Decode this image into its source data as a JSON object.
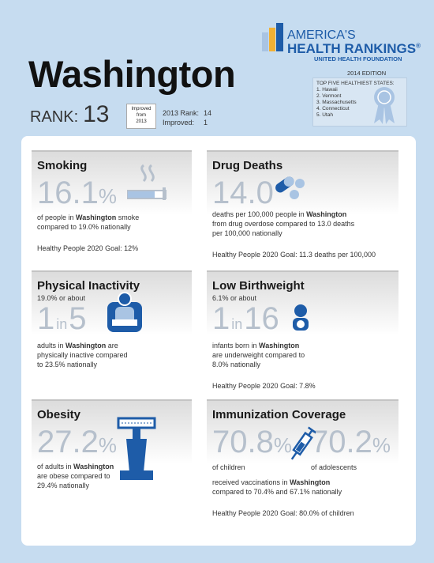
{
  "header": {
    "logo": {
      "line1": "AMERICA'S",
      "line2": "HEALTH RANKINGS",
      "registered": "®",
      "org": "UNITED HEALTH FOUNDATION"
    },
    "edition": "2014 EDITION",
    "state": "Washington",
    "rank_label": "RANK:",
    "rank": "13",
    "badge": [
      "Improved",
      "from",
      "2013"
    ],
    "prev_rank_label": "2013 Rank:",
    "prev_rank": "14",
    "improved_label": "Improved:",
    "improved": "1",
    "top_five": {
      "title": "TOP FIVE HEALTHIEST STATES:",
      "items": [
        "1. Hawaii",
        "2. Vermont",
        "3. Massachusetts",
        "4. Connecticut",
        "5. Utah"
      ]
    }
  },
  "sections": [
    {
      "title": "Smoking",
      "figures": [
        {
          "value": "16.1",
          "unit": "%"
        }
      ],
      "lines": [
        [
          "of people in ",
          {
            "text": "Washington",
            "bold": true
          },
          " smoke"
        ],
        [
          "compared to 19.0% nationally"
        ]
      ],
      "goal": "Healthy People 2020 Goal: 12%"
    },
    {
      "title": "Drug Deaths",
      "figures": [
        {
          "value": "14.0"
        }
      ],
      "lines": [
        [
          "deaths per 100,000 people in ",
          {
            "text": "Washington",
            "bold": true
          }
        ],
        [
          "from drug overdose compared to 13.0 deaths"
        ],
        [
          "per 100,000 nationally"
        ]
      ],
      "goal": "Healthy People 2020 Goal: 11.3 deaths per 100,000"
    },
    {
      "title": "Physical Inactivity",
      "pre": "19.0% or about",
      "ratio": {
        "a": "1",
        "in": "in",
        "b": "5"
      },
      "lines": [
        [
          "adults in ",
          {
            "text": "Washington",
            "bold": true
          },
          " are"
        ],
        [
          "physically inactive compared"
        ],
        [
          "to 23.5% nationally"
        ]
      ]
    },
    {
      "title": "Low Birthweight",
      "pre": "6.1% or about",
      "ratio": {
        "a": "1",
        "in": "in",
        "b": "16"
      },
      "lines": [
        [
          "infants born in ",
          {
            "text": "Washington",
            "bold": true
          }
        ],
        [
          "are underweight compared to"
        ],
        [
          "8.0% nationally"
        ]
      ],
      "goal": "Healthy People 2020 Goal: 7.8%"
    },
    {
      "title": "Obesity",
      "figures": [
        {
          "value": "27.2",
          "unit": "%"
        }
      ],
      "lines": [
        [
          "of adults in ",
          {
            "text": "Washington",
            "bold": true
          }
        ],
        [
          "are obese compared to"
        ],
        [
          "29.4% nationally"
        ]
      ]
    },
    {
      "title": "Immunization Coverage",
      "figures": [
        {
          "value": "70.8",
          "unit": "%",
          "label": "of children"
        },
        {
          "value": "70.2",
          "unit": "%",
          "label": "of adolescents"
        }
      ],
      "lines": [
        [
          "received vaccinations in ",
          {
            "text": "Washington",
            "bold": true
          }
        ],
        [
          "compared to 70.4% and 67.1% nationally"
        ]
      ],
      "goal": "Healthy People 2020 Goal: 80.0% of children"
    }
  ]
}
